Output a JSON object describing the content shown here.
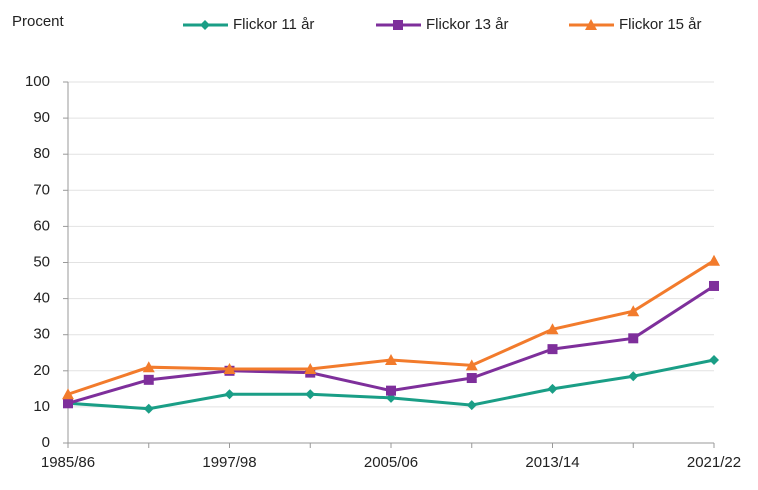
{
  "chart_data": {
    "type": "line",
    "y_label": "Procent",
    "categories": [
      "1985/86",
      null,
      "1997/98",
      null,
      "2005/06",
      null,
      "2013/14",
      null,
      "2021/22"
    ],
    "series": [
      {
        "name": "Flickor 11 år",
        "color": "#1a9e86",
        "marker": "diamond",
        "values": [
          11,
          9.5,
          13.5,
          13.5,
          12.5,
          10.5,
          15,
          18.5,
          23
        ]
      },
      {
        "name": "Flickor 13 år",
        "color": "#7e2f9b",
        "marker": "square",
        "values": [
          11,
          17.5,
          20,
          19.5,
          14.5,
          18,
          26,
          29,
          43.5
        ]
      },
      {
        "name": "Flickor 15 år",
        "color": "#f27b2c",
        "marker": "triangle",
        "values": [
          13.5,
          21,
          20.5,
          20.5,
          23,
          21.5,
          31.5,
          36.5,
          50.5
        ]
      }
    ],
    "ylim": [
      0,
      100
    ],
    "yticks": [
      0,
      10,
      20,
      30,
      40,
      50,
      60,
      70,
      80,
      90,
      100
    ],
    "grid": true,
    "legend": "top"
  }
}
